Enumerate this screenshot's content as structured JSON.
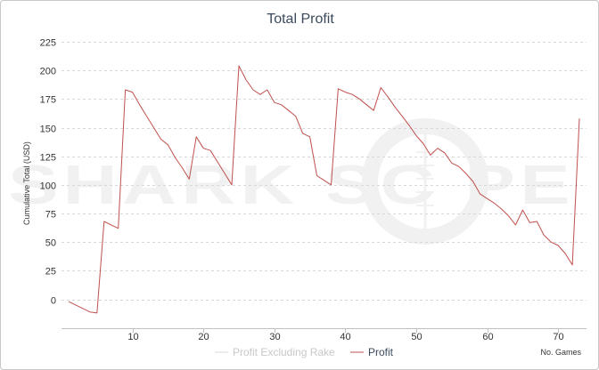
{
  "chart_data": {
    "type": "line",
    "title": "Total Profit",
    "xlabel": "No. Games",
    "ylabel": "Cumulative Total (USD)",
    "xlim": [
      0,
      74
    ],
    "ylim": [
      -25,
      225
    ],
    "xticks": [
      10,
      20,
      30,
      40,
      50,
      60,
      70
    ],
    "yticks": [
      0,
      25,
      50,
      75,
      100,
      125,
      150,
      175,
      200,
      225
    ],
    "grid": true,
    "legend_position": "bottom-center",
    "series": [
      {
        "name": "Profit Excluding Rake",
        "color": "#d9d9d9",
        "visible": false,
        "x": [],
        "y": []
      },
      {
        "name": "Profit",
        "color": "#c0504d",
        "visible": true,
        "x": [
          1,
          2,
          3,
          4,
          5,
          6,
          7,
          8,
          9,
          10,
          11,
          12,
          13,
          14,
          15,
          16,
          17,
          18,
          19,
          20,
          21,
          22,
          23,
          24,
          25,
          26,
          27,
          28,
          29,
          30,
          31,
          32,
          33,
          34,
          35,
          36,
          37,
          38,
          39,
          40,
          41,
          42,
          43,
          44,
          45,
          46,
          47,
          48,
          49,
          50,
          51,
          52,
          53,
          54,
          55,
          56,
          57,
          58,
          59,
          60,
          61,
          62,
          63,
          64,
          65,
          66,
          67,
          68,
          69,
          70,
          71,
          72,
          73
        ],
        "y": [
          -2,
          -5,
          -8,
          -11,
          -12,
          68,
          65,
          62,
          183,
          181,
          170,
          160,
          150,
          140,
          135,
          124,
          115,
          105,
          142,
          132,
          130,
          120,
          110,
          100,
          204,
          192,
          183,
          179,
          183,
          172,
          170,
          165,
          160,
          145,
          142,
          108,
          104,
          100,
          184,
          181,
          179,
          175,
          170,
          165,
          185,
          177,
          168,
          160,
          152,
          143,
          136,
          126,
          132,
          128,
          119,
          116,
          110,
          103,
          92,
          88,
          84,
          79,
          73,
          65,
          78,
          67,
          68,
          56,
          50,
          47,
          40,
          30,
          158
        ]
      }
    ]
  },
  "watermark": {
    "text": "SHARKSCOPE",
    "color": "#eeeeee"
  }
}
